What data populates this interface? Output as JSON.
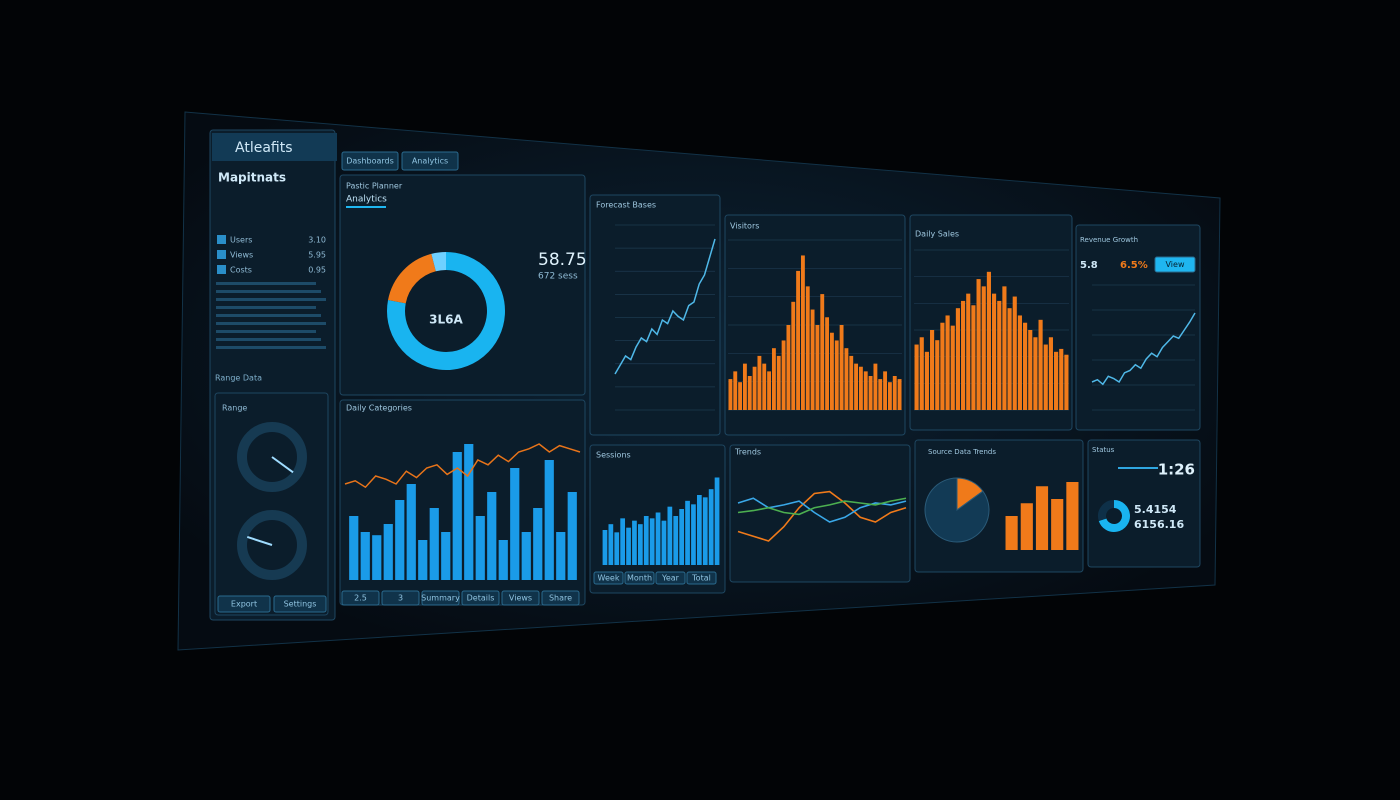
{
  "sidebar": {
    "title": "Atleafits",
    "heading": "Mapitnats",
    "items": [
      {
        "label": "Users",
        "value": "3.10"
      },
      {
        "label": "Views",
        "value": "5.95"
      },
      {
        "label": "Costs",
        "value": "0.95"
      }
    ],
    "section": "Range Data",
    "gauge_title": "Range",
    "gauges": [
      35,
      80
    ],
    "buttons": [
      "Export",
      "Settings"
    ]
  },
  "tabs": [
    "Dashboards",
    "Analytics"
  ],
  "donut": {
    "title": "Pastic Planner",
    "tab": "Analytics",
    "kpi": "58.75",
    "kpi_sub": "672 sess",
    "center": "3L6A",
    "values": [
      78,
      18,
      4
    ],
    "colors": [
      "#19b4f0",
      "#f07a1a",
      "#6fd0ff"
    ]
  },
  "forecast": {
    "title": "Forecast Bases",
    "color": "#4fb8e8",
    "ylim": [
      0,
      100
    ],
    "values": [
      20,
      25,
      30,
      28,
      35,
      40,
      38,
      45,
      42,
      50,
      48,
      55,
      52,
      50,
      58,
      60,
      70,
      75,
      85,
      95
    ]
  },
  "visitors": {
    "title": "Visitors",
    "color": "#f07a1a",
    "ylim": [
      0,
      110
    ],
    "values": [
      20,
      25,
      18,
      30,
      22,
      28,
      35,
      30,
      25,
      40,
      35,
      45,
      55,
      70,
      90,
      100,
      80,
      65,
      55,
      75,
      60,
      50,
      45,
      55,
      40,
      35,
      30,
      28,
      25,
      22,
      30,
      20,
      25,
      18,
      22,
      20
    ]
  },
  "sales": {
    "title": "Daily Sales",
    "color": "#f07a1a",
    "ylim": [
      0,
      110
    ],
    "values": [
      45,
      50,
      40,
      55,
      48,
      60,
      65,
      58,
      70,
      75,
      80,
      72,
      90,
      85,
      95,
      80,
      75,
      85,
      70,
      78,
      65,
      60,
      55,
      50,
      62,
      45,
      50,
      40,
      42,
      38
    ]
  },
  "growth": {
    "title": "Revenue Growth",
    "kpi": "5.8",
    "kpi2": "6.5%",
    "button": "View",
    "color": "#4fb8e8",
    "ylim": [
      0,
      100
    ],
    "values": [
      20,
      22,
      18,
      25,
      23,
      20,
      28,
      30,
      35,
      32,
      40,
      45,
      42,
      50,
      55,
      60,
      58,
      65,
      72,
      80
    ]
  },
  "categories": {
    "title": "Daily Categories",
    "bar_color": "#1a9be8",
    "line_color": "#e8741a",
    "ylim": [
      0,
      100
    ],
    "bars": [
      40,
      30,
      28,
      35,
      50,
      60,
      25,
      45,
      30,
      80,
      85,
      40,
      55,
      25,
      70,
      30,
      45,
      75,
      30,
      55
    ],
    "line": [
      60,
      62,
      58,
      65,
      63,
      60,
      68,
      64,
      70,
      72,
      66,
      70,
      65,
      75,
      72,
      78,
      74,
      80,
      82,
      85,
      80,
      84,
      82,
      80
    ],
    "buttons": [
      "2.5",
      "3",
      "Summary",
      "Details",
      "Views",
      "Share"
    ]
  },
  "sessions": {
    "title": "Sessions",
    "color": "#1a9be8",
    "ylim": [
      0,
      90
    ],
    "values": [
      30,
      35,
      28,
      40,
      32,
      38,
      35,
      42,
      40,
      45,
      38,
      50,
      42,
      48,
      55,
      52,
      60,
      58,
      65,
      75
    ],
    "buttons": [
      "Week",
      "Month",
      "Year",
      "Total"
    ]
  },
  "trends": {
    "title": "Trends",
    "ylim": [
      0,
      100
    ],
    "series": [
      {
        "color": "#f07a1a",
        "values": [
          30,
          25,
          20,
          35,
          55,
          70,
          72,
          60,
          45,
          40,
          50,
          55
        ]
      },
      {
        "color": "#3aa8e8",
        "values": [
          60,
          65,
          55,
          58,
          62,
          50,
          40,
          45,
          55,
          60,
          58,
          62
        ]
      },
      {
        "color": "#4caf50",
        "values": [
          50,
          52,
          55,
          50,
          48,
          55,
          58,
          62,
          60,
          58,
          62,
          65
        ]
      }
    ]
  },
  "mix": {
    "title": "Source Data Trends",
    "pie": [
      15,
      85
    ],
    "pie_colors": [
      "#f07a1a",
      "#123a55"
    ],
    "color": "#f07a1a",
    "ylim": [
      0,
      100
    ],
    "values": [
      40,
      55,
      75,
      60,
      80
    ]
  },
  "kpis": {
    "title": "Status",
    "main": "1:26",
    "line1": "5.4154",
    "line2": "6156.16",
    "ring": [
      70,
      30
    ],
    "ring_colors": [
      "#19b4f0",
      "#0e3048"
    ]
  }
}
